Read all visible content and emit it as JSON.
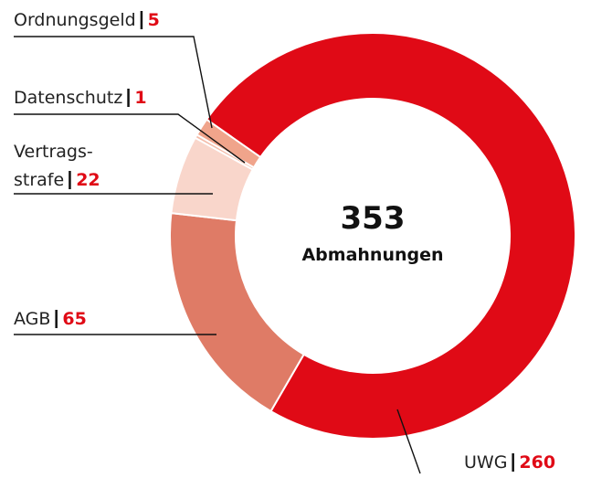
{
  "chart_data": {
    "type": "donut",
    "center_value": "353",
    "center_label": "Abmahnungen",
    "categories": [
      "UWG",
      "AGB",
      "Vertrags-\nstrafe",
      "Datenschutz",
      "Ordnungsgeld"
    ],
    "values": [
      260,
      65,
      22,
      1,
      5
    ],
    "colors": [
      "#e00a16",
      "#df7b66",
      "#f9d6cb",
      "#f4bca9",
      "#f0a48b"
    ]
  }
}
